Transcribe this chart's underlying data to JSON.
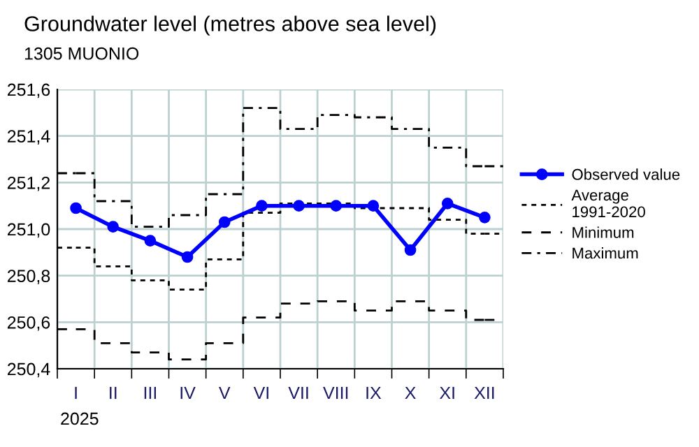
{
  "chart_data": {
    "type": "line",
    "title": "Groundwater level (metres above sea level)",
    "subtitle": "1305 MUONIO",
    "categories": [
      "I",
      "II",
      "III",
      "IV",
      "V",
      "VI",
      "VII",
      "VIII",
      "IX",
      "X",
      "XI",
      "XII"
    ],
    "series": [
      {
        "name": "Observed value",
        "color": "#0000ff",
        "marker": "circle",
        "line_style": "solid",
        "values": [
          251.09,
          251.01,
          250.95,
          250.88,
          251.03,
          251.1,
          251.1,
          251.1,
          251.1,
          250.91,
          251.11,
          251.05
        ]
      },
      {
        "name": "Average\n1991-2020",
        "type": "step",
        "color": "#000000",
        "line_style": "dotted",
        "values": [
          250.92,
          250.84,
          250.78,
          250.74,
          250.87,
          251.07,
          251.11,
          251.11,
          251.09,
          251.09,
          251.04,
          250.98
        ]
      },
      {
        "name": "Minimum",
        "type": "step",
        "color": "#000000",
        "line_style": "dashed",
        "values": [
          250.57,
          250.51,
          250.47,
          250.44,
          250.51,
          250.62,
          250.68,
          250.69,
          250.65,
          250.69,
          250.65,
          250.61
        ]
      },
      {
        "name": "Maximum",
        "type": "step",
        "color": "#000000",
        "line_style": "dashdot",
        "values": [
          251.24,
          251.12,
          251.01,
          251.06,
          251.15,
          251.52,
          251.43,
          251.49,
          251.48,
          251.43,
          251.35,
          251.27
        ]
      }
    ],
    "ylim": [
      250.4,
      251.6
    ],
    "yticks": [
      {
        "value": 250.4,
        "label": "250,4"
      },
      {
        "value": 250.6,
        "label": "250,6"
      },
      {
        "value": 250.8,
        "label": "250,8"
      },
      {
        "value": 251.0,
        "label": "251,0"
      },
      {
        "value": 251.2,
        "label": "251,2"
      },
      {
        "value": 251.4,
        "label": "251,4"
      },
      {
        "value": 251.6,
        "label": "251,6"
      }
    ],
    "annotations": [
      "2025"
    ],
    "grid": true,
    "legend": "right"
  }
}
